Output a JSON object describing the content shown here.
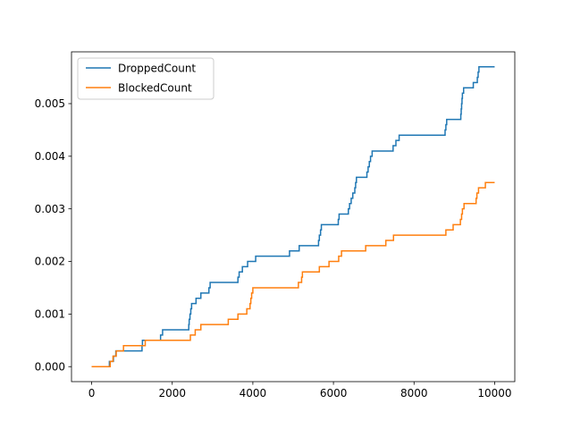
{
  "chart_data": {
    "type": "line",
    "title": "",
    "xlabel": "",
    "ylabel": "",
    "xlim": [
      -500,
      10500
    ],
    "ylim": [
      -0.000285,
      0.005985
    ],
    "xticks": [
      0,
      2000,
      4000,
      6000,
      8000,
      10000
    ],
    "xtick_labels": [
      "0",
      "2000",
      "4000",
      "6000",
      "8000",
      "10000"
    ],
    "yticks": [
      0.0,
      0.001,
      0.002,
      0.003,
      0.004,
      0.005
    ],
    "ytick_labels": [
      "0.000",
      "0.001",
      "0.002",
      "0.003",
      "0.004",
      "0.005"
    ],
    "grid": false,
    "legend_position": "top-left",
    "series": [
      {
        "name": "DroppedCount",
        "color": "#1f77b4",
        "step": true,
        "points": [
          [
            0,
            0.0
          ],
          [
            420,
            0.0
          ],
          [
            440,
            0.0001
          ],
          [
            520,
            0.0001
          ],
          [
            540,
            0.0002
          ],
          [
            580,
            0.0002
          ],
          [
            600,
            0.0003
          ],
          [
            1230,
            0.0003
          ],
          [
            1250,
            0.0004
          ],
          [
            1260,
            0.0005
          ],
          [
            1470,
            0.0005
          ],
          [
            1500,
            0.0005
          ],
          [
            1700,
            0.0005
          ],
          [
            1710,
            0.0006
          ],
          [
            1760,
            0.0007
          ],
          [
            2400,
            0.0007
          ],
          [
            2410,
            0.0008
          ],
          [
            2420,
            0.0009
          ],
          [
            2440,
            0.001
          ],
          [
            2460,
            0.0011
          ],
          [
            2480,
            0.0012
          ],
          [
            2580,
            0.0012
          ],
          [
            2590,
            0.0013
          ],
          [
            2700,
            0.0013
          ],
          [
            2710,
            0.0014
          ],
          [
            2900,
            0.0014
          ],
          [
            2910,
            0.0015
          ],
          [
            2940,
            0.0016
          ],
          [
            3620,
            0.0016
          ],
          [
            3630,
            0.0017
          ],
          [
            3660,
            0.0018
          ],
          [
            3730,
            0.0018
          ],
          [
            3740,
            0.0019
          ],
          [
            3860,
            0.0019
          ],
          [
            3870,
            0.002
          ],
          [
            4060,
            0.002
          ],
          [
            4070,
            0.0021
          ],
          [
            4900,
            0.0021
          ],
          [
            4910,
            0.0022
          ],
          [
            5140,
            0.0022
          ],
          [
            5150,
            0.0023
          ],
          [
            5620,
            0.0023
          ],
          [
            5630,
            0.0024
          ],
          [
            5650,
            0.0025
          ],
          [
            5680,
            0.0026
          ],
          [
            5700,
            0.0027
          ],
          [
            6110,
            0.0027
          ],
          [
            6120,
            0.0028
          ],
          [
            6140,
            0.0029
          ],
          [
            6360,
            0.0029
          ],
          [
            6370,
            0.003
          ],
          [
            6400,
            0.0031
          ],
          [
            6440,
            0.0032
          ],
          [
            6480,
            0.0033
          ],
          [
            6530,
            0.0034
          ],
          [
            6550,
            0.0035
          ],
          [
            6570,
            0.0036
          ],
          [
            6820,
            0.0036
          ],
          [
            6830,
            0.0037
          ],
          [
            6860,
            0.0038
          ],
          [
            6890,
            0.0039
          ],
          [
            6920,
            0.004
          ],
          [
            6960,
            0.0041
          ],
          [
            7470,
            0.0041
          ],
          [
            7480,
            0.0042
          ],
          [
            7540,
            0.0042
          ],
          [
            7550,
            0.0043
          ],
          [
            7620,
            0.0043
          ],
          [
            7630,
            0.0044
          ],
          [
            8760,
            0.0044
          ],
          [
            8770,
            0.0045
          ],
          [
            8790,
            0.0046
          ],
          [
            8810,
            0.0047
          ],
          [
            9150,
            0.0047
          ],
          [
            9160,
            0.0048
          ],
          [
            9170,
            0.0049
          ],
          [
            9180,
            0.005
          ],
          [
            9190,
            0.0051
          ],
          [
            9200,
            0.0052
          ],
          [
            9230,
            0.0053
          ],
          [
            9460,
            0.0053
          ],
          [
            9470,
            0.0054
          ],
          [
            9560,
            0.0054
          ],
          [
            9570,
            0.0055
          ],
          [
            9590,
            0.0056
          ],
          [
            9610,
            0.0057
          ],
          [
            10000,
            0.0057
          ]
        ]
      },
      {
        "name": "BlockedCount",
        "color": "#ff7f0e",
        "step": true,
        "points": [
          [
            0,
            0.0
          ],
          [
            450,
            0.0
          ],
          [
            460,
            0.0001
          ],
          [
            520,
            0.0001
          ],
          [
            530,
            0.0002
          ],
          [
            600,
            0.0002
          ],
          [
            610,
            0.0003
          ],
          [
            780,
            0.0003
          ],
          [
            790,
            0.0004
          ],
          [
            1320,
            0.0004
          ],
          [
            1330,
            0.0005
          ],
          [
            2440,
            0.0005
          ],
          [
            2450,
            0.0006
          ],
          [
            2560,
            0.0006
          ],
          [
            2570,
            0.0007
          ],
          [
            2700,
            0.0007
          ],
          [
            2710,
            0.0008
          ],
          [
            3380,
            0.0008
          ],
          [
            3390,
            0.0009
          ],
          [
            3620,
            0.0009
          ],
          [
            3630,
            0.001
          ],
          [
            3840,
            0.001
          ],
          [
            3850,
            0.0011
          ],
          [
            3920,
            0.0011
          ],
          [
            3930,
            0.0012
          ],
          [
            3950,
            0.0013
          ],
          [
            3970,
            0.0014
          ],
          [
            4000,
            0.0015
          ],
          [
            5120,
            0.0015
          ],
          [
            5130,
            0.0016
          ],
          [
            5200,
            0.0016
          ],
          [
            5210,
            0.0017
          ],
          [
            5230,
            0.0018
          ],
          [
            5640,
            0.0018
          ],
          [
            5650,
            0.0019
          ],
          [
            5880,
            0.0019
          ],
          [
            5890,
            0.002
          ],
          [
            6120,
            0.002
          ],
          [
            6130,
            0.0021
          ],
          [
            6200,
            0.0022
          ],
          [
            6790,
            0.0022
          ],
          [
            6800,
            0.0023
          ],
          [
            7290,
            0.0023
          ],
          [
            7300,
            0.0024
          ],
          [
            7480,
            0.0024
          ],
          [
            7490,
            0.0025
          ],
          [
            8780,
            0.0025
          ],
          [
            8790,
            0.0026
          ],
          [
            8960,
            0.0026
          ],
          [
            8970,
            0.0027
          ],
          [
            9140,
            0.0027
          ],
          [
            9150,
            0.0028
          ],
          [
            9180,
            0.0029
          ],
          [
            9200,
            0.003
          ],
          [
            9240,
            0.0031
          ],
          [
            9530,
            0.0031
          ],
          [
            9540,
            0.0032
          ],
          [
            9560,
            0.0033
          ],
          [
            9600,
            0.0034
          ],
          [
            9760,
            0.0034
          ],
          [
            9770,
            0.0035
          ],
          [
            10000,
            0.0035
          ]
        ]
      }
    ]
  }
}
